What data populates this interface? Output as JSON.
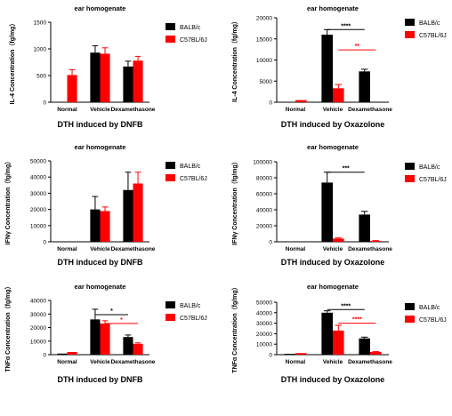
{
  "colors": {
    "balbc": "#000000",
    "c57": "#ff0000",
    "axis": "#000000"
  },
  "chart_data": [
    {
      "type": "bar",
      "title": "ear homogenate",
      "xlabel": "DTH induced by DNFB",
      "ylabel": "IL-4 Concentration（fg/mg）",
      "categories": [
        "Normal",
        "Vehicle",
        "Dexamethasone"
      ],
      "ylim": [
        0,
        1500
      ],
      "yticks": [
        "0",
        "500",
        "1000",
        "1500"
      ],
      "legend": "top-right",
      "series": [
        {
          "name": "BALB/c",
          "values": [
            0,
            930,
            670
          ],
          "errors": [
            0,
            130,
            100
          ]
        },
        {
          "name": "C57BL/6J",
          "values": [
            510,
            910,
            780
          ],
          "errors": [
            100,
            110,
            80
          ]
        }
      ],
      "significance": []
    },
    {
      "type": "bar",
      "title": "ear homogenate",
      "xlabel": "DTH induced by Oxazolone",
      "ylabel": "IL-4 Concentration（fg/mg）",
      "categories": [
        "Normal",
        "Vehicle",
        "Dexamethasone"
      ],
      "ylim": [
        0,
        20000
      ],
      "yticks": [
        "0",
        "5000",
        "10000",
        "15000",
        "20000"
      ],
      "legend": "top-right",
      "series": [
        {
          "name": "BALB/c",
          "values": [
            0,
            16000,
            7300
          ],
          "errors": [
            0,
            1200,
            500
          ]
        },
        {
          "name": "C57BL/6J",
          "values": [
            500,
            3300,
            0
          ],
          "errors": [
            0,
            900,
            0
          ]
        }
      ],
      "significance": [
        {
          "label": "****",
          "series": 0,
          "from": 1,
          "to": 2,
          "y": 17200
        },
        {
          "label": "**",
          "series": 1,
          "from": 1,
          "to": 2,
          "y": 12400
        }
      ]
    },
    {
      "type": "bar",
      "title": "ear homogenate",
      "xlabel": "DTH induced by DNFB",
      "ylabel": "IFNγ Concentration（fg/mg）",
      "categories": [
        "Normal",
        "Vehicle",
        "Dexamethasone"
      ],
      "ylim": [
        0,
        50000
      ],
      "yticks": [
        "0",
        "10000",
        "20000",
        "30000",
        "40000",
        "50000"
      ],
      "legend": "top-right",
      "series": [
        {
          "name": "BALB/c",
          "values": [
            0,
            20000,
            32000
          ],
          "errors": [
            0,
            8000,
            11000
          ]
        },
        {
          "name": "C57BL/6J",
          "values": [
            0,
            19000,
            36000
          ],
          "errors": [
            0,
            2500,
            7000
          ]
        }
      ],
      "significance": []
    },
    {
      "type": "bar",
      "title": "ear homogenate",
      "xlabel": "DTH induced by Oxazolone",
      "ylabel": "IFNγ Concentration（fg/mg）",
      "categories": [
        "Normal",
        "Vehicle",
        "Dexamethasone"
      ],
      "ylim": [
        0,
        100000
      ],
      "yticks": [
        "0",
        "20000",
        "40000",
        "60000",
        "80000",
        "100000"
      ],
      "legend": "top-right",
      "series": [
        {
          "name": "BALB/c",
          "values": [
            0,
            74000,
            34000
          ],
          "errors": [
            0,
            13000,
            4000
          ]
        },
        {
          "name": "C57BL/6J",
          "values": [
            0,
            4000,
            1000
          ],
          "errors": [
            0,
            800,
            500
          ]
        }
      ],
      "significance": [
        {
          "label": "***",
          "series": 0,
          "from": 1,
          "to": 2,
          "y": 87000
        }
      ]
    },
    {
      "type": "bar",
      "title": "ear homogenate",
      "xlabel": "DTH induced by DNFB",
      "ylabel": "TNFα Concentration（fg/mg）",
      "categories": [
        "Normal",
        "Vehicle",
        "Dexamethasone"
      ],
      "ylim": [
        0,
        40000
      ],
      "yticks": [
        "0",
        "10000",
        "20000",
        "30000",
        "40000"
      ],
      "legend": "top-right",
      "series": [
        {
          "name": "BALB/c",
          "values": [
            800,
            26000,
            13000
          ],
          "errors": [
            0,
            7500,
            1500
          ]
        },
        {
          "name": "C57BL/6J",
          "values": [
            2000,
            23000,
            8000
          ],
          "errors": [
            0,
            2000,
            700
          ]
        }
      ],
      "significance": [
        {
          "label": "*",
          "series": 0,
          "from": 1,
          "to": 2,
          "y": 29500
        },
        {
          "label": "*",
          "series": 1,
          "from": 1,
          "to": 2,
          "y": 23000
        }
      ]
    },
    {
      "type": "bar",
      "title": "ear homogenate",
      "xlabel": "DTH induced by Oxazolone",
      "ylabel": "TNFα Concentration（fg/mg）",
      "categories": [
        "Normal",
        "Vehicle",
        "Dexamethasone"
      ],
      "ylim": [
        0,
        50000
      ],
      "yticks": [
        "0",
        "10000",
        "20000",
        "30000",
        "40000",
        "50000"
      ],
      "legend": "top-right",
      "series": [
        {
          "name": "BALB/c",
          "values": [
            800,
            40000,
            15500
          ],
          "errors": [
            0,
            1800,
            1200
          ]
        },
        {
          "name": "C57BL/6J",
          "values": [
            1500,
            23000,
            2500
          ],
          "errors": [
            0,
            5000,
            400
          ]
        }
      ],
      "significance": [
        {
          "label": "****",
          "series": 0,
          "from": 1,
          "to": 2,
          "y": 43000
        },
        {
          "label": "****",
          "series": 1,
          "from": 1,
          "to": 2,
          "y": 30000
        }
      ]
    }
  ]
}
